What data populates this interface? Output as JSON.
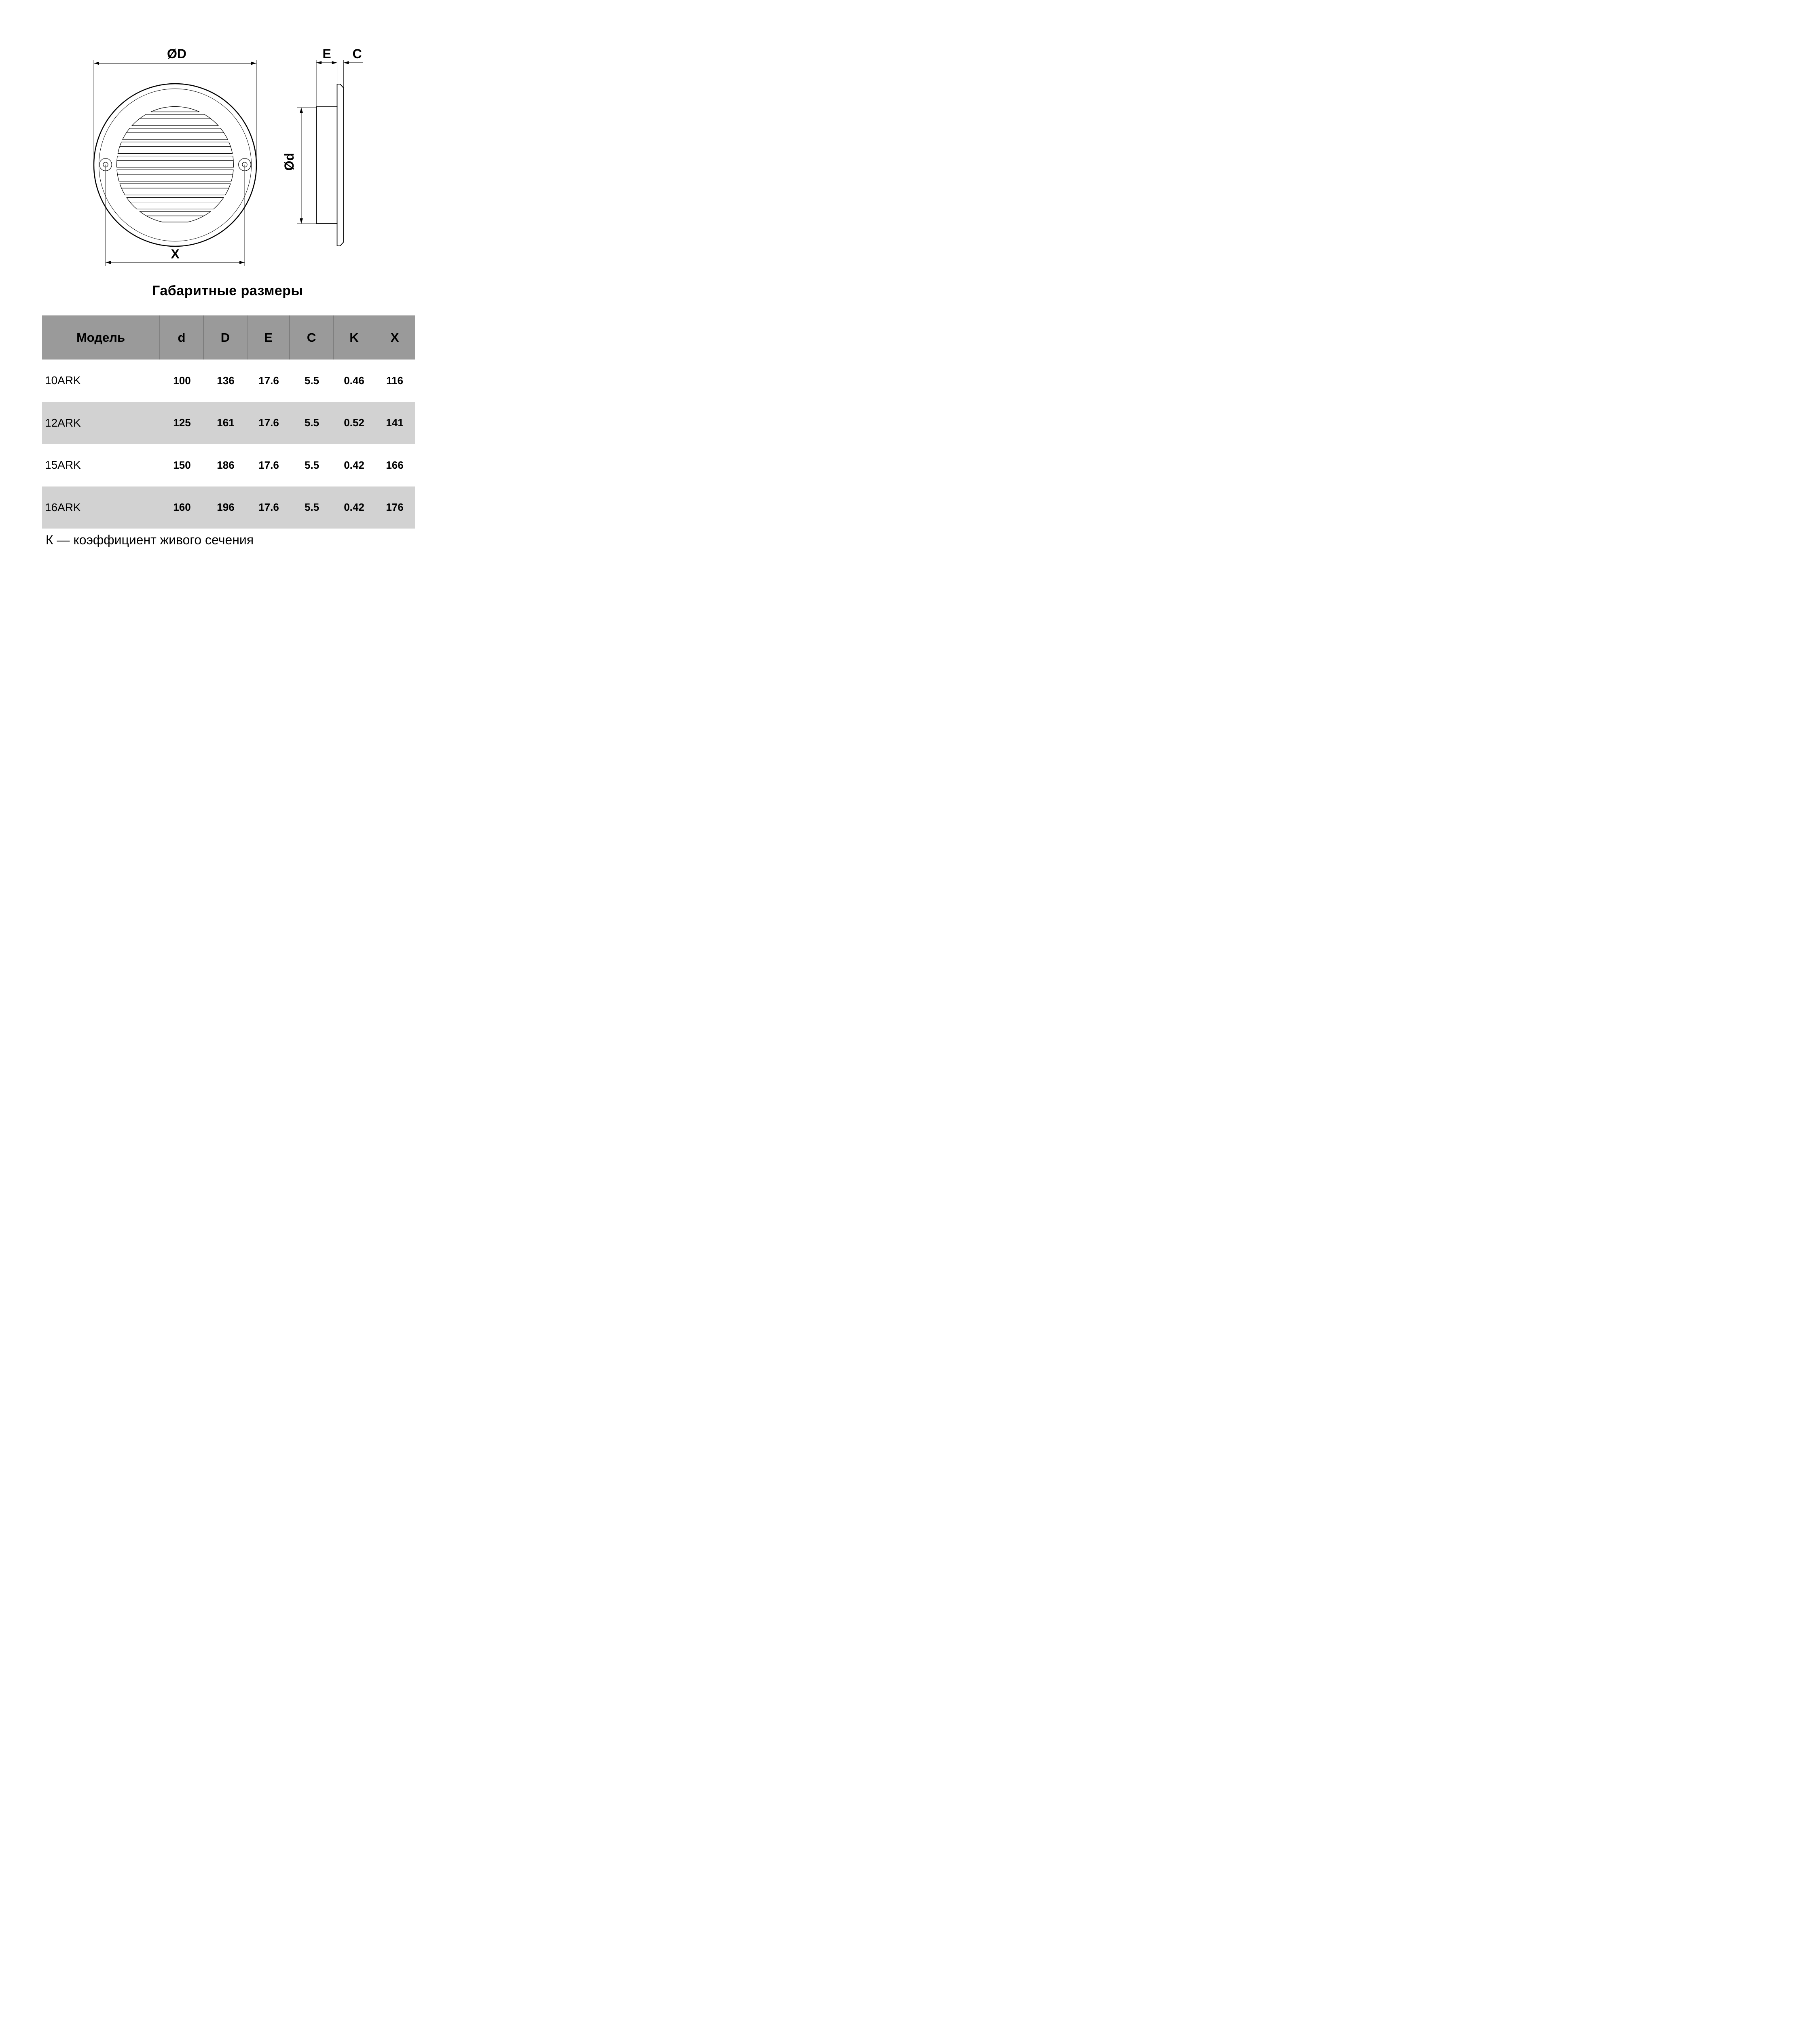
{
  "drawing": {
    "front": {
      "dim_outer": "ØD",
      "dim_holes": "X"
    },
    "side": {
      "dim_depth": "E",
      "dim_flange": "C",
      "dim_duct": "Ød"
    }
  },
  "title": "Габаритные размеры",
  "table": {
    "headers": [
      "Модель",
      "d",
      "D",
      "E",
      "C",
      "K",
      "X"
    ],
    "rows": [
      {
        "model": "10ARK",
        "d": "100",
        "D": "136",
        "E": "17.6",
        "C": "5.5",
        "K": "0.46",
        "X": "116"
      },
      {
        "model": "12ARK",
        "d": "125",
        "D": "161",
        "E": "17.6",
        "C": "5.5",
        "K": "0.52",
        "X": "141"
      },
      {
        "model": "15ARK",
        "d": "150",
        "D": "186",
        "E": "17.6",
        "C": "5.5",
        "K": "0.42",
        "X": "166"
      },
      {
        "model": "16ARK",
        "d": "160",
        "D": "196",
        "E": "17.6",
        "C": "5.5",
        "K": "0.42",
        "X": "176"
      }
    ]
  },
  "footer_note": "К — коэффициент живого сечения",
  "colors": {
    "line": "#000000",
    "header_bg": "#9a9a9a",
    "header_divider": "#7e7e7e",
    "row_alt_bg": "#d2d2d2"
  }
}
